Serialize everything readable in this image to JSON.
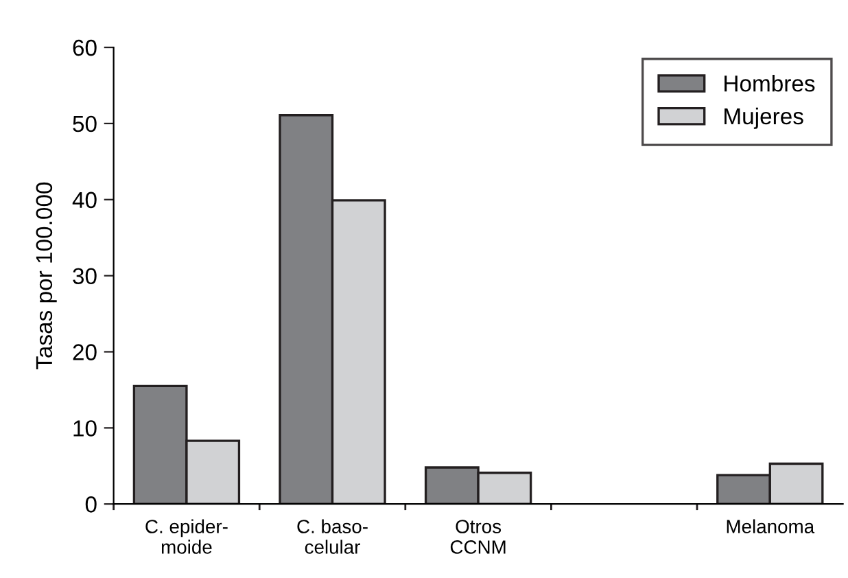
{
  "chart_data": {
    "type": "bar",
    "ylabel": "Tasas por 100.000",
    "categories": [
      "C. epider-\nmoide",
      "C. baso-\ncelular",
      "Otros\nCCNM",
      null,
      "Melanoma"
    ],
    "series": [
      {
        "name": "Hombres",
        "color": "#808184",
        "values": [
          15.5,
          51.1,
          4.8,
          null,
          3.8
        ]
      },
      {
        "name": "Mujeres",
        "color": "#d1d2d4",
        "values": [
          8.3,
          39.9,
          4.1,
          null,
          5.3
        ]
      }
    ],
    "ylim": [
      0,
      60
    ],
    "yticks": [
      0,
      10,
      20,
      30,
      40,
      50,
      60
    ],
    "grid": false,
    "legend": "top right"
  }
}
